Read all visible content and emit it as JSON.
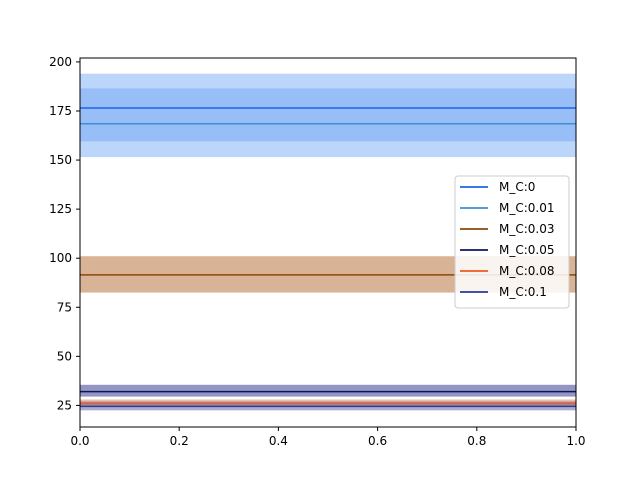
{
  "chart_data": {
    "type": "line",
    "title": "",
    "xlabel": "",
    "ylabel": "",
    "xlim": [
      0,
      1
    ],
    "ylim": [
      14,
      202
    ],
    "xticks": [
      0.0,
      0.2,
      0.4,
      0.6,
      0.8,
      1.0
    ],
    "xtick_labels": [
      "0.0",
      "0.2",
      "0.4",
      "0.6",
      "0.8",
      "1.0"
    ],
    "yticks": [
      25,
      50,
      75,
      100,
      125,
      150,
      175,
      200
    ],
    "ytick_labels": [
      "25",
      "50",
      "75",
      "100",
      "125",
      "150",
      "175",
      "200"
    ],
    "grid": false,
    "legend_position": "center-right",
    "series": [
      {
        "name": "M_C:0",
        "x": [
          0,
          1
        ],
        "y": [
          176.5,
          176.5
        ],
        "band": [
          159.5,
          186.5
        ],
        "color": "#1a66e6",
        "band_color": "#6aa2f5",
        "band_opacity": 0.45
      },
      {
        "name": "M_C:0.01",
        "x": [
          0,
          1
        ],
        "y": [
          168.5,
          168.5
        ],
        "band": [
          151.5,
          194.0
        ],
        "color": "#3b8fd6",
        "band_color": "#6aa2f5",
        "band_opacity": 0.45
      },
      {
        "name": "M_C:0.03",
        "x": [
          0,
          1
        ],
        "y": [
          91.5,
          91.5
        ],
        "band": [
          82.5,
          101.0
        ],
        "color": "#8b4a08",
        "band_color": "#b8743e",
        "band_opacity": 0.55
      },
      {
        "name": "M_C:0.05",
        "x": [
          0,
          1
        ],
        "y": [
          32.0,
          32.0
        ],
        "band": [
          29.5,
          35.5
        ],
        "color": "#0c1460",
        "band_color": "#3a3f8f",
        "band_opacity": 0.55
      },
      {
        "name": "M_C:0.08",
        "x": [
          0,
          1
        ],
        "y": [
          26.0,
          26.0
        ],
        "band": [
          24.5,
          28.0
        ],
        "color": "#ee5a1e",
        "band_color": "#d98a66",
        "band_opacity": 0.55
      },
      {
        "name": "M_C:0.1",
        "x": [
          0,
          1
        ],
        "y": [
          24.5,
          24.5
        ],
        "band": [
          22.5,
          27.0
        ],
        "color": "#2a3a9a",
        "band_color": "#5a5a9e",
        "band_opacity": 0.5
      }
    ]
  }
}
